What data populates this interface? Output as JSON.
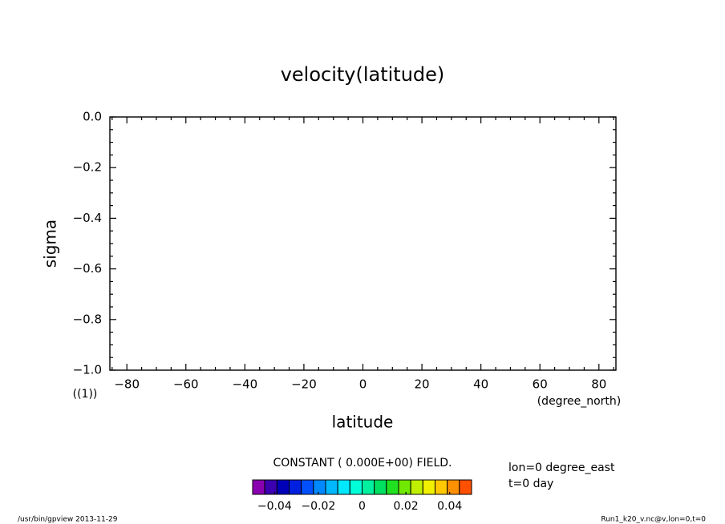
{
  "chart_data": {
    "type": "contour",
    "title": "velocity(latitude)",
    "x_label": "latitude",
    "x_unit": "(degree_north)",
    "y_label": "sigma",
    "y_unit": "((1))",
    "xlim": [
      -85.76,
      85.76
    ],
    "xticks": [
      {
        "value": -80,
        "label": "−80"
      },
      {
        "value": -60,
        "label": "−60"
      },
      {
        "value": -40,
        "label": "−40"
      },
      {
        "value": -20,
        "label": "−20"
      },
      0,
      20,
      40,
      60,
      80
    ],
    "xminorticks": [
      -85,
      -75,
      -70,
      -65,
      -55,
      -50,
      -45,
      -35,
      -30,
      -25,
      -15,
      -10,
      -5,
      5,
      10,
      15,
      25,
      30,
      35,
      45,
      50,
      55,
      65,
      70,
      75,
      85
    ],
    "ylim": [
      -1.0,
      0.0
    ],
    "yticks": [
      {
        "value": 0,
        "label": "0.0"
      },
      {
        "value": -0.2,
        "label": "−0.2"
      },
      {
        "value": -0.4,
        "label": "−0.4"
      },
      {
        "value": -0.6,
        "label": "−0.6"
      },
      {
        "value": -0.8,
        "label": "−0.8"
      },
      {
        "value": -1.0,
        "label": "−1.0"
      }
    ],
    "yminorticks": [
      -0.05,
      -0.1,
      -0.15,
      -0.25,
      -0.3,
      -0.35,
      -0.45,
      -0.5,
      -0.55,
      -0.65,
      -0.7,
      -0.75,
      -0.85,
      -0.9,
      -0.95
    ],
    "field_note": "CONSTANT ( 0.000E+00) FIELD.",
    "annotations": [
      "lon=0 degree_east",
      "t=0 day"
    ],
    "colorbar": {
      "lim": [
        -0.05,
        0.05
      ],
      "colors": [
        "#8a00b0",
        "#3c00b0",
        "#0000b8",
        "#0020e0",
        "#0050ff",
        "#0088ff",
        "#00b8ff",
        "#00e8ff",
        "#00ffd8",
        "#00f0a0",
        "#00e060",
        "#20e020",
        "#70e800",
        "#c0f000",
        "#f0f000",
        "#ffc800",
        "#ff9000",
        "#ff5000"
      ],
      "ticks": [
        {
          "value": -0.04,
          "label": "−0.04"
        },
        {
          "value": -0.02,
          "label": "−0.02"
        },
        0,
        0.02,
        0.04
      ]
    },
    "footer_left": "/usr/bin/gpview   2013-11-29",
    "footer_right": "Run1_k20_v.nc@v,lon=0,t=0"
  }
}
